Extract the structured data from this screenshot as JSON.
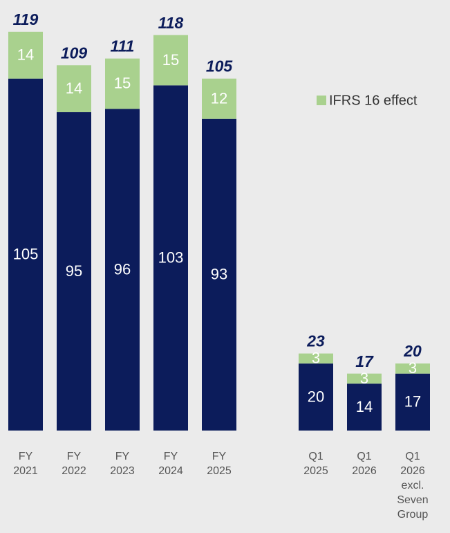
{
  "chart_data": {
    "type": "stacked-bar",
    "categories": [
      [
        "FY",
        "2021"
      ],
      [
        "FY",
        "2022"
      ],
      [
        "FY",
        "2023"
      ],
      [
        "FY",
        "2024"
      ],
      [
        "FY",
        "2025"
      ],
      null,
      [
        "Q1",
        "2025"
      ],
      [
        "Q1",
        "2026"
      ],
      [
        "Q1",
        "2026",
        "excl.",
        "Seven",
        "Group"
      ]
    ],
    "series": [
      {
        "color": "#0c1c5b",
        "values": [
          105,
          95,
          96,
          103,
          93,
          null,
          20,
          14,
          17
        ]
      },
      {
        "name": "IFRS 16 effect",
        "color": "#a9d18e",
        "values": [
          14,
          14,
          15,
          15,
          12,
          null,
          3,
          3,
          3
        ]
      }
    ],
    "totals": [
      119,
      109,
      111,
      118,
      105,
      null,
      23,
      17,
      20
    ],
    "ylim": [
      0,
      120
    ],
    "legend": "right"
  }
}
